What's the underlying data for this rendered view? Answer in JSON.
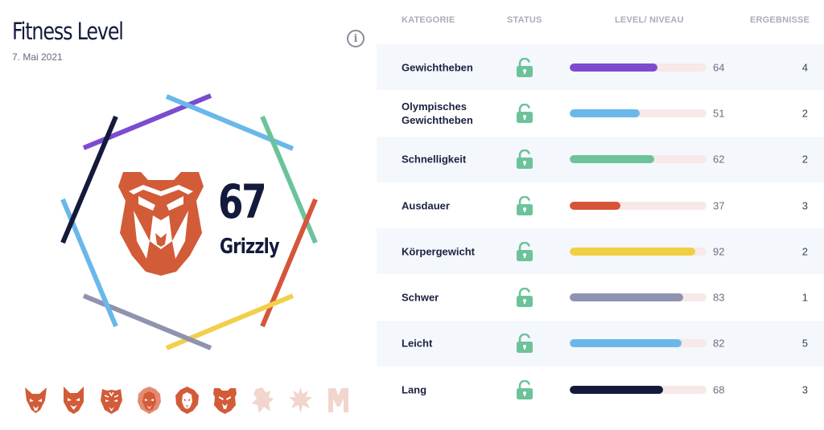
{
  "header": {
    "title": "Fitness Level",
    "date": "7. Mai 2021",
    "info_icon": "info-icon"
  },
  "score": {
    "value": "67",
    "label": "Grizzly",
    "badge_icon": "bear-icon"
  },
  "badge_colors": [
    "#7b4ccf",
    "#6ab8ea",
    "#6cc39a",
    "#d6553a",
    "#f3cf4a",
    "#8f93b0",
    "#6ab8ea",
    "#141a3c"
  ],
  "level_icons": [
    {
      "name": "fox-icon",
      "active": true
    },
    {
      "name": "wolf-icon",
      "active": true
    },
    {
      "name": "tiger-icon",
      "active": true
    },
    {
      "name": "lion-icon",
      "active": true
    },
    {
      "name": "lion-2-icon",
      "active": true
    },
    {
      "name": "bear-icon",
      "active": true
    },
    {
      "name": "griffin-icon",
      "active": false
    },
    {
      "name": "phoenix-icon",
      "active": false
    },
    {
      "name": "unicorn-icon",
      "active": false
    }
  ],
  "table": {
    "headers": {
      "category": "KATEGORIE",
      "status": "STATUS",
      "level": "LEVEL/ NIVEAU",
      "results": "ERGEBNISSE"
    },
    "rows": [
      {
        "category": "Gewichtheben",
        "status": "unlocked",
        "level": "64",
        "level_value": 64,
        "results": "4",
        "color": "#7b4ccf"
      },
      {
        "category": "Olympisches Gewichtheben",
        "status": "unlocked",
        "level": "51",
        "level_value": 51,
        "results": "2",
        "color": "#6ab8ea"
      },
      {
        "category": "Schnelligkeit",
        "status": "unlocked",
        "level": "62",
        "level_value": 62,
        "results": "2",
        "color": "#6cc39a"
      },
      {
        "category": "Ausdauer",
        "status": "unlocked",
        "level": "37",
        "level_value": 37,
        "results": "3",
        "color": "#d6553a"
      },
      {
        "category": "Körpergewicht",
        "status": "unlocked",
        "level": "92",
        "level_value": 92,
        "results": "2",
        "color": "#f0cf45"
      },
      {
        "category": "Schwer",
        "status": "unlocked",
        "level": "83",
        "level_value": 83,
        "results": "1",
        "color": "#8f93b0"
      },
      {
        "category": "Leicht",
        "status": "unlocked",
        "level": "82",
        "level_value": 82,
        "results": "5",
        "color": "#6ab8ea"
      },
      {
        "category": "Lang",
        "status": "unlocked",
        "level": "68",
        "level_value": 68,
        "results": "3",
        "color": "#141a3c"
      }
    ]
  },
  "colors": {
    "accent_bear": "#d25b38",
    "lock_green": "#6cc39a",
    "track": "#f6e9e7",
    "row_shade": "#f4f7fc"
  }
}
